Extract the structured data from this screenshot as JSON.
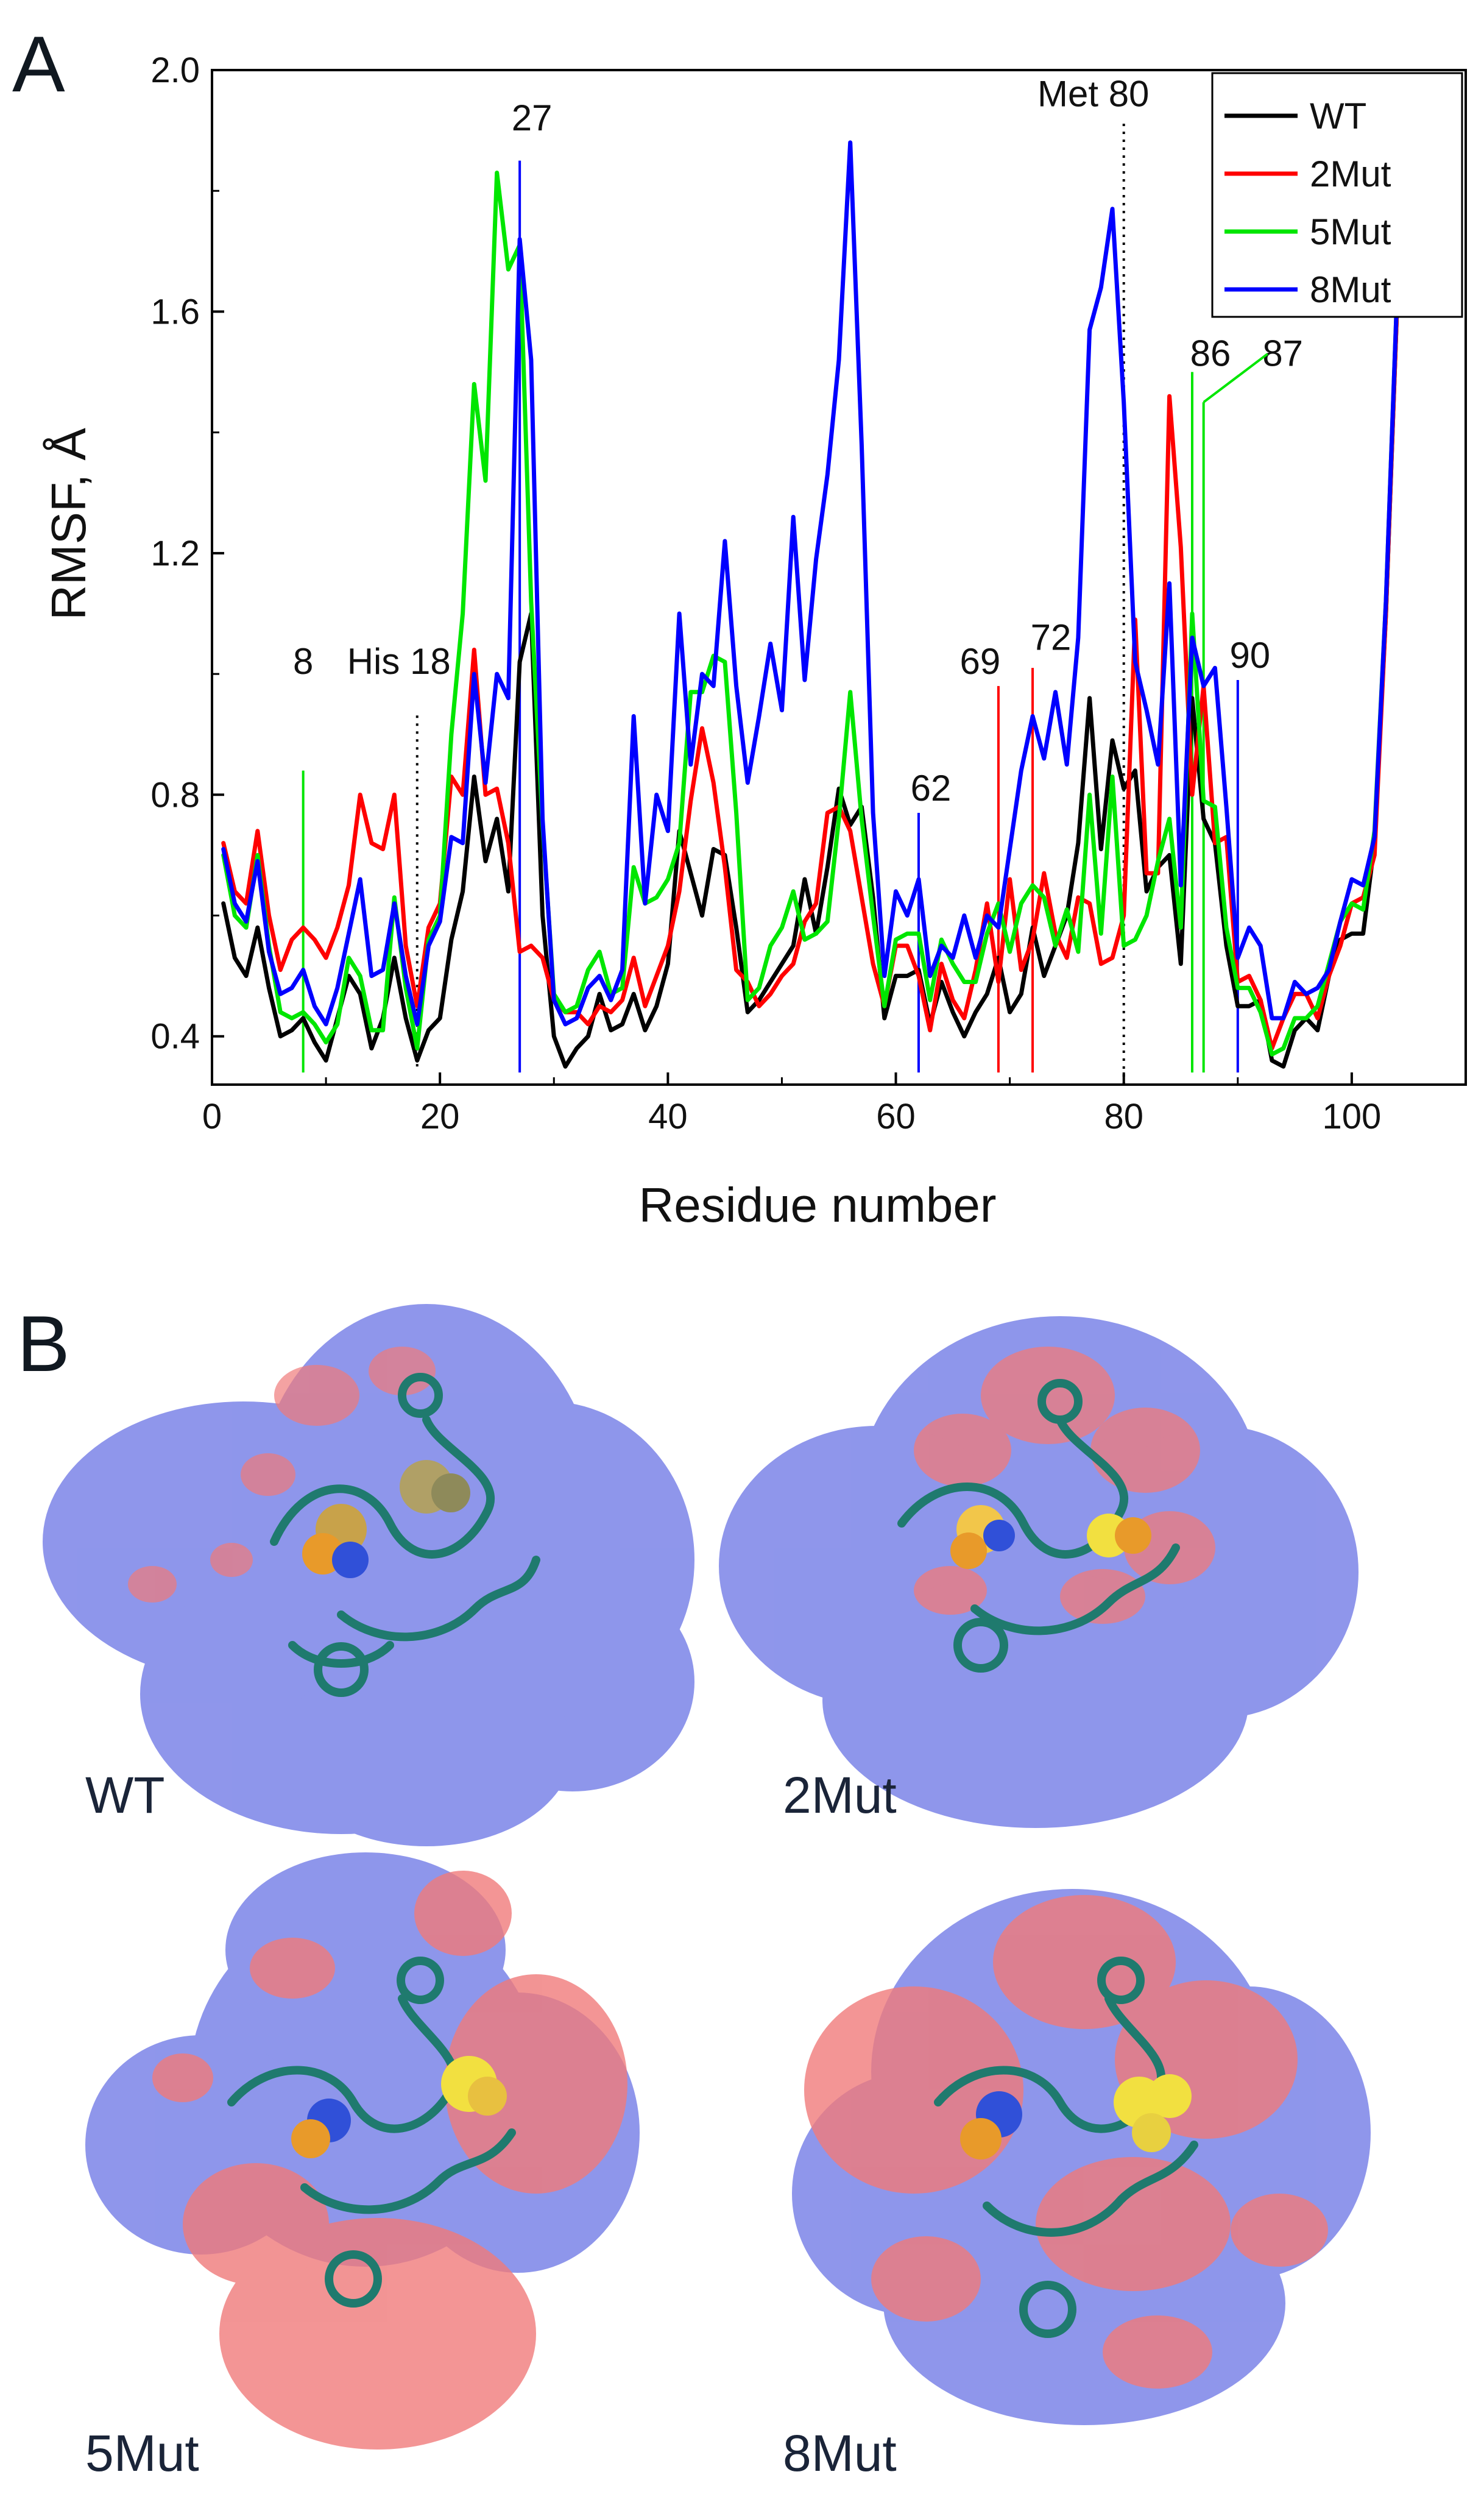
{
  "panel_a_label": "A",
  "panel_b_label": "B",
  "chart_data": {
    "type": "line",
    "title": "",
    "xlabel": "Residue number",
    "ylabel": "RMSF, Å",
    "xlim": [
      0,
      110
    ],
    "ylim": [
      0.32,
      2.0
    ],
    "xticks": [
      0,
      20,
      40,
      60,
      80,
      100
    ],
    "yticks": [
      0.4,
      0.8,
      1.2,
      1.6,
      2.0
    ],
    "xtick_labels": [
      "0",
      "20",
      "40",
      "60",
      "80",
      "100"
    ],
    "ytick_labels": [
      "0.4",
      "0.8",
      "1.2",
      "1.6",
      "2.0"
    ],
    "legend_position": "top-right",
    "x": [
      1,
      2,
      3,
      4,
      5,
      6,
      7,
      8,
      9,
      10,
      11,
      12,
      13,
      14,
      15,
      16,
      17,
      18,
      19,
      20,
      21,
      22,
      23,
      24,
      25,
      26,
      27,
      28,
      29,
      30,
      31,
      32,
      33,
      34,
      35,
      36,
      37,
      38,
      39,
      40,
      41,
      42,
      43,
      44,
      45,
      46,
      47,
      48,
      49,
      50,
      51,
      52,
      53,
      54,
      55,
      56,
      57,
      58,
      59,
      60,
      61,
      62,
      63,
      64,
      65,
      66,
      67,
      68,
      69,
      70,
      71,
      72,
      73,
      74,
      75,
      76,
      77,
      78,
      79,
      80,
      81,
      82,
      83,
      84,
      85,
      86,
      87,
      88,
      89,
      90,
      91,
      92,
      93,
      94,
      95,
      96,
      97,
      98,
      99,
      100,
      101,
      102,
      103,
      104
    ],
    "series": [
      {
        "name": "WT",
        "color": "#000000",
        "values": [
          0.62,
          0.53,
          0.5,
          0.58,
          0.48,
          0.4,
          0.41,
          0.43,
          0.39,
          0.36,
          0.43,
          0.5,
          0.47,
          0.38,
          0.43,
          0.53,
          0.43,
          0.36,
          0.41,
          0.43,
          0.56,
          0.64,
          0.83,
          0.69,
          0.76,
          0.64,
          1.02,
          1.1,
          0.6,
          0.4,
          0.35,
          0.38,
          0.4,
          0.47,
          0.41,
          0.42,
          0.47,
          0.41,
          0.45,
          0.52,
          0.74,
          0.67,
          0.6,
          0.71,
          0.7,
          0.58,
          0.44,
          0.46,
          0.49,
          0.52,
          0.55,
          0.66,
          0.57,
          0.68,
          0.81,
          0.75,
          0.78,
          0.63,
          0.43,
          0.5,
          0.5,
          0.51,
          0.42,
          0.49,
          0.44,
          0.4,
          0.44,
          0.47,
          0.53,
          0.44,
          0.47,
          0.58,
          0.5,
          0.55,
          0.6,
          0.72,
          0.96,
          0.71,
          0.89,
          0.81,
          0.84,
          0.64,
          0.68,
          0.7,
          0.52,
          0.96,
          0.76,
          0.72,
          0.55,
          0.45,
          0.45,
          0.46,
          0.36,
          0.35,
          0.41,
          0.43,
          0.41,
          0.5,
          0.56,
          0.57,
          0.57,
          0.72,
          1.1,
          1.62
        ]
      },
      {
        "name": "2Mut",
        "color": "#ff0000",
        "values": [
          0.72,
          0.64,
          0.62,
          0.74,
          0.6,
          0.51,
          0.56,
          0.58,
          0.56,
          0.53,
          0.58,
          0.65,
          0.8,
          0.72,
          0.71,
          0.8,
          0.55,
          0.45,
          0.58,
          0.62,
          0.83,
          0.8,
          1.04,
          0.8,
          0.81,
          0.72,
          0.54,
          0.55,
          0.53,
          0.46,
          0.44,
          0.44,
          0.42,
          0.45,
          0.44,
          0.46,
          0.53,
          0.45,
          0.5,
          0.55,
          0.64,
          0.79,
          0.91,
          0.82,
          0.68,
          0.51,
          0.49,
          0.45,
          0.47,
          0.5,
          0.52,
          0.59,
          0.62,
          0.77,
          0.78,
          0.74,
          0.63,
          0.52,
          0.45,
          0.55,
          0.55,
          0.5,
          0.41,
          0.52,
          0.46,
          0.43,
          0.51,
          0.62,
          0.49,
          0.66,
          0.51,
          0.56,
          0.67,
          0.57,
          0.53,
          0.63,
          0.62,
          0.52,
          0.53,
          0.6,
          1.09,
          0.67,
          0.67,
          1.46,
          1.21,
          0.8,
          0.98,
          0.72,
          0.73,
          0.49,
          0.5,
          0.46,
          0.38,
          0.43,
          0.47,
          0.47,
          0.43,
          0.5,
          0.55,
          0.62,
          0.63,
          0.7,
          1.1,
          1.62
        ]
      },
      {
        "name": "5Mut",
        "color": "#00e600",
        "values": [
          0.7,
          0.6,
          0.58,
          0.7,
          0.55,
          0.44,
          0.43,
          0.44,
          0.42,
          0.39,
          0.42,
          0.53,
          0.5,
          0.41,
          0.41,
          0.63,
          0.48,
          0.38,
          0.56,
          0.6,
          0.9,
          1.1,
          1.48,
          1.32,
          1.83,
          1.67,
          1.71,
          1.12,
          0.75,
          0.47,
          0.44,
          0.45,
          0.51,
          0.54,
          0.47,
          0.48,
          0.68,
          0.62,
          0.63,
          0.66,
          0.72,
          0.97,
          0.97,
          1.03,
          1.02,
          0.77,
          0.46,
          0.48,
          0.55,
          0.58,
          0.64,
          0.56,
          0.57,
          0.59,
          0.76,
          0.97,
          0.76,
          0.6,
          0.45,
          0.56,
          0.57,
          0.57,
          0.46,
          0.56,
          0.52,
          0.49,
          0.49,
          0.57,
          0.62,
          0.54,
          0.62,
          0.65,
          0.63,
          0.55,
          0.61,
          0.54,
          0.8,
          0.57,
          0.83,
          0.55,
          0.56,
          0.6,
          0.69,
          0.76,
          0.58,
          1.1,
          0.79,
          0.78,
          0.58,
          0.48,
          0.48,
          0.44,
          0.37,
          0.38,
          0.43,
          0.43,
          0.45,
          0.52,
          0.59,
          0.62,
          0.61,
          0.74,
          1.12,
          1.64
        ]
      },
      {
        "name": "8Mut",
        "color": "#0000ff",
        "values": [
          0.71,
          0.62,
          0.59,
          0.69,
          0.54,
          0.47,
          0.48,
          0.51,
          0.45,
          0.42,
          0.48,
          0.57,
          0.66,
          0.5,
          0.51,
          0.62,
          0.5,
          0.42,
          0.55,
          0.59,
          0.73,
          0.72,
          1.0,
          0.82,
          1.0,
          0.96,
          1.72,
          1.52,
          0.76,
          0.46,
          0.42,
          0.43,
          0.48,
          0.5,
          0.46,
          0.51,
          0.93,
          0.62,
          0.8,
          0.74,
          1.1,
          0.85,
          1.0,
          0.98,
          1.22,
          0.98,
          0.82,
          0.93,
          1.05,
          0.94,
          1.26,
          0.99,
          1.19,
          1.33,
          1.52,
          1.88,
          1.38,
          0.77,
          0.5,
          0.64,
          0.6,
          0.66,
          0.5,
          0.55,
          0.53,
          0.6,
          0.53,
          0.6,
          0.58,
          0.71,
          0.84,
          0.93,
          0.86,
          0.97,
          0.85,
          1.06,
          1.57,
          1.64,
          1.77,
          1.45,
          1.02,
          0.94,
          0.85,
          1.15,
          0.65,
          1.06,
          0.98,
          1.01,
          0.78,
          0.53,
          0.58,
          0.55,
          0.43,
          0.43,
          0.49,
          0.47,
          0.48,
          0.51,
          0.59,
          0.66,
          0.65,
          0.73,
          1.12,
          1.64
        ]
      }
    ],
    "reference_lines": [
      {
        "x": 18,
        "style": "dotted",
        "color": "#000000",
        "y_from": 0.35,
        "y_to": 0.94,
        "label": "His 18"
      },
      {
        "x": 80,
        "style": "dotted",
        "color": "#000000",
        "y_from": 0.32,
        "y_to": 1.92,
        "label": "Met 80"
      }
    ],
    "mutation_markers": [
      {
        "x": 8,
        "color": "#00e600",
        "y_from": 0.34,
        "y_to": 0.84,
        "label": "8"
      },
      {
        "x": 27,
        "color": "#0000ff",
        "y_from": 0.34,
        "y_to": 1.85,
        "label": "27"
      },
      {
        "x": 62,
        "color": "#0000ff",
        "y_from": 0.34,
        "y_to": 0.77,
        "label": "62"
      },
      {
        "x": 69,
        "color": "#ff0000",
        "y_from": 0.34,
        "y_to": 0.98,
        "label": "69"
      },
      {
        "x": 72,
        "color": "#ff0000",
        "y_from": 0.34,
        "y_to": 1.01,
        "label": "72"
      },
      {
        "x": 86,
        "color": "#00e600",
        "y_from": 0.34,
        "y_to": 1.5,
        "label": "86"
      },
      {
        "x": 87,
        "color": "#00e600",
        "y_from": 0.34,
        "y_to": 1.45,
        "label": "87"
      },
      {
        "x": 90,
        "color": "#0000ff",
        "y_from": 0.34,
        "y_to": 0.99,
        "label": "90"
      }
    ]
  },
  "structures": [
    {
      "label": "WT"
    },
    {
      "label": "2Mut"
    },
    {
      "label": "5Mut"
    },
    {
      "label": "8Mut"
    }
  ],
  "colors": {
    "positive_surface": "#f07a7a",
    "negative_surface": "#7b84e8",
    "backbone": "#1f7a6e",
    "heme_atoms": "#e89a2a",
    "mutation_spheres": "#f2e040"
  }
}
